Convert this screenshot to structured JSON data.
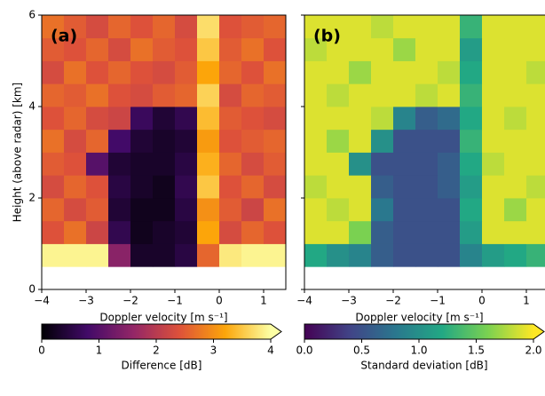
{
  "chart_data": [
    {
      "type": "heatmap",
      "panel_label": "(a)",
      "xlabel": "Doppler velocity [m s⁻¹]",
      "ylabel": "Height (above radar) [km]",
      "xlim": [
        -4,
        1.5
      ],
      "ylim": [
        0,
        6
      ],
      "xticks": [
        {
          "value": -4,
          "label": "−4"
        },
        {
          "value": -3,
          "label": "−3"
        },
        {
          "value": -2,
          "label": "−2"
        },
        {
          "value": -1,
          "label": "−1"
        },
        0,
        1
      ],
      "yticks": [
        0,
        2,
        4,
        6
      ],
      "show_ytick_labels": true,
      "xbins": [
        -4,
        -3.5,
        -3,
        -2.5,
        -2,
        -1.5,
        -1,
        -0.5,
        0,
        0.5,
        1,
        1.5
      ],
      "ybins": [
        0.5,
        1,
        1.5,
        2,
        2.5,
        3,
        3.5,
        4,
        4.5,
        5,
        5.5,
        6
      ],
      "values": [
        [
          3.9,
          3.9,
          3.9,
          1.5,
          0.3,
          0.3,
          0.5,
          2.6,
          3.8,
          3.9,
          3.9
        ],
        [
          2.4,
          2.7,
          2.2,
          0.6,
          0.2,
          0.3,
          0.4,
          3.2,
          2.3,
          2.6,
          2.4
        ],
        [
          2.6,
          2.3,
          2.5,
          0.4,
          0.2,
          0.2,
          0.5,
          3.0,
          2.5,
          2.2,
          2.7
        ],
        [
          2.3,
          2.6,
          2.4,
          0.5,
          0.3,
          0.2,
          0.6,
          3.5,
          2.4,
          2.6,
          2.3
        ],
        [
          2.5,
          2.4,
          1.0,
          0.4,
          0.3,
          0.3,
          0.5,
          3.3,
          2.6,
          2.3,
          2.5
        ],
        [
          2.7,
          2.3,
          2.6,
          0.8,
          0.4,
          0.3,
          0.4,
          3.1,
          2.4,
          2.5,
          2.6
        ],
        [
          2.4,
          2.6,
          2.3,
          2.2,
          0.7,
          0.4,
          0.6,
          3.4,
          2.5,
          2.4,
          2.3
        ],
        [
          2.6,
          2.5,
          2.7,
          2.4,
          2.3,
          2.5,
          2.6,
          3.6,
          2.3,
          2.6,
          2.5
        ],
        [
          2.3,
          2.7,
          2.4,
          2.6,
          2.4,
          2.3,
          2.5,
          3.2,
          2.6,
          2.4,
          2.7
        ],
        [
          2.5,
          2.4,
          2.6,
          2.3,
          2.7,
          2.5,
          2.4,
          3.5,
          2.5,
          2.7,
          2.4
        ],
        [
          2.7,
          2.5,
          2.3,
          2.6,
          2.4,
          2.6,
          2.3,
          3.7,
          2.4,
          2.5,
          2.6
        ]
      ],
      "colormap": [
        "#000004",
        "#420a68",
        "#932667",
        "#dd513a",
        "#fca50a",
        "#fcffa4"
      ],
      "colorbar": {
        "label": "Difference [dB]",
        "lim": [
          0,
          4
        ],
        "ticks": [
          0,
          1,
          2,
          3,
          4
        ],
        "extend": "max"
      }
    },
    {
      "type": "heatmap",
      "panel_label": "(b)",
      "xlabel": "Doppler velocity [m s⁻¹]",
      "xlim": [
        -4,
        1.5
      ],
      "ylim": [
        0,
        6
      ],
      "xticks": [
        {
          "value": -4,
          "label": "−4"
        },
        {
          "value": -3,
          "label": "−3"
        },
        {
          "value": -2,
          "label": "−2"
        },
        {
          "value": -1,
          "label": "−1"
        },
        0,
        1
      ],
      "yticks": [
        0,
        2,
        4,
        6
      ],
      "show_ytick_labels": false,
      "xbins": [
        -4,
        -3.5,
        -3,
        -2.5,
        -2,
        -1.5,
        -1,
        -0.5,
        0,
        0.5,
        1,
        1.5
      ],
      "ybins": [
        0.5,
        1,
        1.5,
        2,
        2.5,
        3,
        3.5,
        4,
        4.5,
        5,
        5.5,
        6
      ],
      "values": [
        [
          1.2,
          1.0,
          0.9,
          0.6,
          0.5,
          0.5,
          0.5,
          0.9,
          1.1,
          1.2,
          1.3
        ],
        [
          1.9,
          1.9,
          1.6,
          0.6,
          0.5,
          0.5,
          0.5,
          1.1,
          1.9,
          1.9,
          1.9
        ],
        [
          1.9,
          1.8,
          1.9,
          0.8,
          0.5,
          0.5,
          0.5,
          1.2,
          1.9,
          1.7,
          1.9
        ],
        [
          1.8,
          1.9,
          1.9,
          0.6,
          0.5,
          0.5,
          0.6,
          1.1,
          1.9,
          1.9,
          1.8
        ],
        [
          1.9,
          1.9,
          1.0,
          0.5,
          0.5,
          0.5,
          0.6,
          1.2,
          1.8,
          1.9,
          1.9
        ],
        [
          1.9,
          1.7,
          1.9,
          1.0,
          0.5,
          0.5,
          0.5,
          1.3,
          1.9,
          1.9,
          1.9
        ],
        [
          1.9,
          1.9,
          1.9,
          1.8,
          0.9,
          0.6,
          0.7,
          1.2,
          1.9,
          1.8,
          1.9
        ],
        [
          1.9,
          1.8,
          1.9,
          1.9,
          1.9,
          1.8,
          1.9,
          1.3,
          1.9,
          1.9,
          1.9
        ],
        [
          1.9,
          1.9,
          1.7,
          1.9,
          1.9,
          1.9,
          1.8,
          1.2,
          1.9,
          1.9,
          1.8
        ],
        [
          1.8,
          1.9,
          1.9,
          1.9,
          1.7,
          1.9,
          1.9,
          1.1,
          1.9,
          1.9,
          1.9
        ],
        [
          1.9,
          1.9,
          1.9,
          1.8,
          1.9,
          1.9,
          1.9,
          1.3,
          1.9,
          1.9,
          1.9
        ]
      ],
      "colormap": [
        "#440154",
        "#414487",
        "#2a788e",
        "#22a884",
        "#7ad151",
        "#fde725"
      ],
      "colorbar": {
        "label": "Standard deviation [dB]",
        "lim": [
          0,
          2
        ],
        "ticks": [
          {
            "value": 0,
            "label": "0.0"
          },
          {
            "value": 0.5,
            "label": "0.5"
          },
          {
            "value": 1,
            "label": "1.0"
          },
          {
            "value": 1.5,
            "label": "1.5"
          },
          {
            "value": 2,
            "label": "2.0"
          }
        ],
        "extend": "max"
      }
    }
  ]
}
